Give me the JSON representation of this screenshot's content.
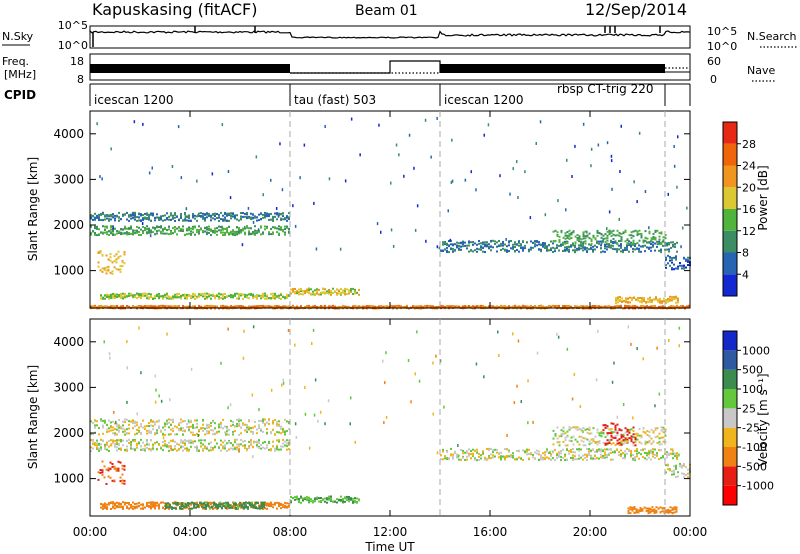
{
  "header": {
    "station": "Kapuskasing (fitACF)",
    "beam": "Beam 01",
    "date": "12/Sep/2014"
  },
  "noise_panel": {
    "left_label": "N.Sky",
    "left_ticks": [
      "10^5",
      "10^0"
    ],
    "right_ticks": [
      "10^5",
      "10^0"
    ],
    "right_label": "N.Search"
  },
  "freq_panel": {
    "left_label_1": "Freq.",
    "left_label_2": "[MHz]",
    "left_ticks": [
      "18",
      "8"
    ],
    "right_ticks": [
      "60",
      "0"
    ],
    "right_label": "Nave"
  },
  "cpid_panel": {
    "label": "CPID",
    "segments": [
      {
        "start_h": 0,
        "end_h": 8,
        "label": "icescan 1200"
      },
      {
        "start_h": 8,
        "end_h": 14,
        "label": "tau (fast) 503"
      },
      {
        "start_h": 14,
        "end_h": 23,
        "label": "icescan 1200"
      },
      {
        "start_h": 23,
        "end_h": 24,
        "label": ""
      }
    ],
    "extra_label": "rbsp CT-trig 220"
  },
  "x_axis": {
    "ticks": [
      "00:00",
      "04:00",
      "08:00",
      "12:00",
      "16:00",
      "20:00",
      "00:00"
    ],
    "tick_hours": [
      0,
      4,
      8,
      12,
      16,
      20,
      24
    ],
    "title": "Time UT",
    "boundaries_h": [
      8,
      14,
      23
    ]
  },
  "power_panel": {
    "ylabel": "Slant Range [km]",
    "yticks": [
      "1000",
      "2000",
      "3000",
      "4000"
    ],
    "ytick_values": [
      1000,
      2000,
      3000,
      4000
    ],
    "colorbar_label": "Power [dB]",
    "colorbar_ticks": [
      "4",
      "8",
      "12",
      "16",
      "20",
      "24",
      "28"
    ],
    "colorbar_colors": [
      "#1428d2",
      "#2864b4",
      "#3c8c64",
      "#50b43c",
      "#dcc832",
      "#f0961e",
      "#f0640a",
      "#e62814"
    ]
  },
  "velocity_panel": {
    "ylabel": "Slant Range [km]",
    "yticks": [
      "1000",
      "2000",
      "3000",
      "4000"
    ],
    "ytick_values": [
      1000,
      2000,
      3000,
      4000
    ],
    "colorbar_label": "Velocity [m s⁻¹]",
    "colorbar_ticks": [
      "1000",
      "500",
      "100",
      "25",
      "-25",
      "-100",
      "-500",
      "-1000"
    ],
    "colorbar_colors": [
      "#1428c8",
      "#2d5aa0",
      "#3c8c50",
      "#64c83c",
      "#c8c8c8",
      "#f0b41e",
      "#f08214",
      "#e61e14",
      "#ff0000"
    ]
  },
  "chart_data": [
    {
      "type": "heatmap",
      "title": "Power [dB]",
      "xlabel": "Time UT",
      "ylabel": "Slant Range [km]",
      "x_range_h": [
        0,
        24
      ],
      "ylim": [
        180,
        4500
      ],
      "echo_bands": [
        {
          "start_h": 0.0,
          "end_h": 8.0,
          "range_km": 2200,
          "thickness_km": 180,
          "value_db": 8
        },
        {
          "start_h": 0.0,
          "end_h": 8.0,
          "range_km": 1900,
          "thickness_km": 200,
          "value_db": 12
        },
        {
          "start_h": 0.3,
          "end_h": 1.4,
          "range_km": 1200,
          "thickness_km": 500,
          "value_db": 20
        },
        {
          "start_h": 0.4,
          "end_h": 8.0,
          "range_km": 460,
          "thickness_km": 120,
          "value_db": 16
        },
        {
          "start_h": 8.0,
          "end_h": 10.8,
          "range_km": 560,
          "thickness_km": 140,
          "value_db": 18
        },
        {
          "start_h": 14.0,
          "end_h": 23.5,
          "range_km": 1550,
          "thickness_km": 250,
          "value_db": 8
        },
        {
          "start_h": 18.5,
          "end_h": 23.0,
          "range_km": 1750,
          "thickness_km": 300,
          "value_db": 12
        },
        {
          "start_h": 21.0,
          "end_h": 23.5,
          "range_km": 380,
          "thickness_km": 140,
          "value_db": 20
        },
        {
          "start_h": 23.0,
          "end_h": 24.0,
          "range_km": 1200,
          "thickness_km": 300,
          "value_db": 6
        },
        {
          "start_h": 0.0,
          "end_h": 24.0,
          "range_km": 220,
          "thickness_km": 60,
          "value_db": 24
        }
      ]
    },
    {
      "type": "heatmap",
      "title": "Velocity [m s⁻¹]",
      "xlabel": "Time UT",
      "ylabel": "Slant Range [km]",
      "x_range_h": [
        0,
        24
      ],
      "ylim": [
        180,
        4500
      ],
      "echo_bands": [
        {
          "start_h": 0.0,
          "end_h": 8.0,
          "range_km": 2150,
          "thickness_km": 350,
          "value_ms": 0
        },
        {
          "start_h": 0.0,
          "end_h": 8.0,
          "range_km": 1750,
          "thickness_km": 250,
          "value_ms": 0
        },
        {
          "start_h": 0.3,
          "end_h": 1.4,
          "range_km": 1150,
          "thickness_km": 500,
          "value_ms": -500
        },
        {
          "start_h": 0.4,
          "end_h": 8.0,
          "range_km": 430,
          "thickness_km": 150,
          "value_ms": -200
        },
        {
          "start_h": 3.0,
          "end_h": 7.0,
          "range_km": 430,
          "thickness_km": 150,
          "value_ms": 150
        },
        {
          "start_h": 8.0,
          "end_h": 10.8,
          "range_km": 560,
          "thickness_km": 140,
          "value_ms": 100
        },
        {
          "start_h": 14.0,
          "end_h": 23.5,
          "range_km": 1550,
          "thickness_km": 250,
          "value_ms": 0
        },
        {
          "start_h": 18.5,
          "end_h": 23.0,
          "range_km": 1950,
          "thickness_km": 400,
          "value_ms": 0
        },
        {
          "start_h": 20.5,
          "end_h": 21.8,
          "range_km": 2000,
          "thickness_km": 500,
          "value_ms": -700
        },
        {
          "start_h": 21.5,
          "end_h": 23.5,
          "range_km": 330,
          "thickness_km": 140,
          "value_ms": -300
        },
        {
          "start_h": 23.0,
          "end_h": 24.0,
          "range_km": 1200,
          "thickness_km": 300,
          "value_ms": 0
        }
      ]
    }
  ]
}
